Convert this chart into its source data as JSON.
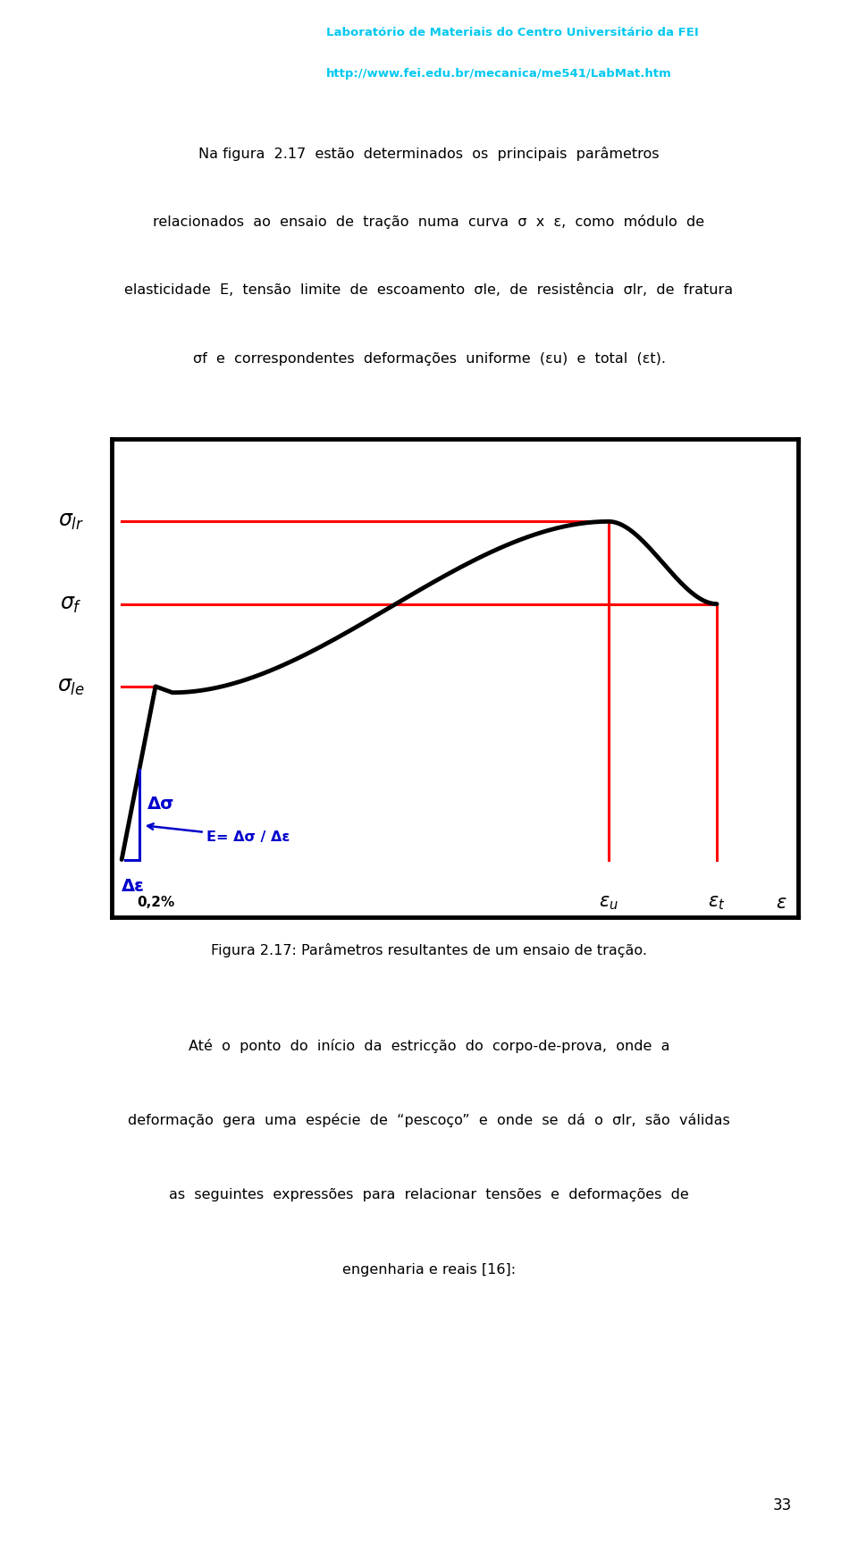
{
  "page_bg": "#ffffff",
  "header_text1": "Laboratório de Materiais do Centro Universitário da FEI",
  "header_text2": "http://www.fei.edu.br/mecanica/me541/LabMat.htm",
  "header_color": "#00c8f0",
  "caption": "Figura 2.17: Parâmetros resultantes de um ensaio de tração.",
  "page_number": "33",
  "sigma_lr": 0.82,
  "sigma_f": 0.62,
  "sigma_le": 0.42,
  "eps_u": 0.72,
  "eps_t": 0.88,
  "eps_02": 0.05,
  "curve_color": "#000000",
  "red_color": "#ff0000",
  "blue_color": "#0000cc",
  "plot_bg": "#ffffff",
  "box_color": "#000000"
}
